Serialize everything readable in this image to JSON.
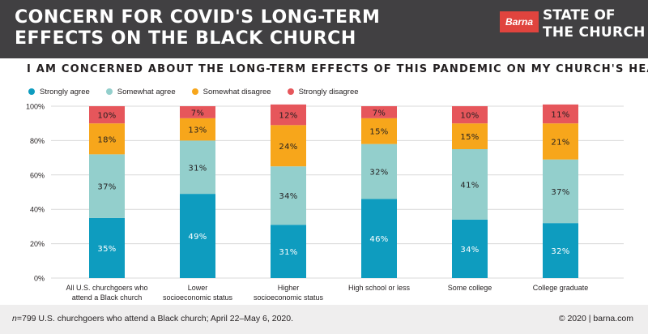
{
  "header": {
    "title_line1": "CONCERN FOR COVID'S LONG-TERM",
    "title_line2": "EFFECTS ON THE BLACK CHURCH",
    "logo_text": "Barna",
    "brand_line1": "STATE OF",
    "brand_line2": "THE CHURCH"
  },
  "footer": {
    "note_n": "n",
    "note_rest": "=799 U.S. churchgoers who attend a Black church; April 22–May 6, 2020.",
    "copyright": "© 2020 | barna.com"
  },
  "colors": {
    "strongly_agree": "#0e9cbf",
    "somewhat_agree": "#93cfcc",
    "somewhat_disagree": "#f7a61b",
    "strongly_disagree": "#e6565b"
  },
  "chart_data": {
    "type": "bar",
    "stacked": true,
    "title": "I AM CONCERNED ABOUT THE LONG-TERM EFFECTS OF THIS PANDEMIC ON MY CHURCH'S HEALTH",
    "categories": [
      [
        "All U.S. churchgoers who",
        "attend a Black church"
      ],
      [
        "Lower",
        "socioeconomic status"
      ],
      [
        "Higher",
        "socioeconomic status"
      ],
      [
        "High school or less"
      ],
      [
        "Some college"
      ],
      [
        "College graduate"
      ]
    ],
    "series": [
      {
        "name": "Strongly agree",
        "values": [
          35,
          49,
          31,
          46,
          34,
          32
        ]
      },
      {
        "name": "Somewhat agree",
        "values": [
          37,
          31,
          34,
          32,
          41,
          37
        ]
      },
      {
        "name": "Somewhat disagree",
        "values": [
          18,
          13,
          24,
          15,
          15,
          21
        ]
      },
      {
        "name": "Strongly disagree",
        "values": [
          10,
          7,
          12,
          7,
          10,
          11
        ]
      }
    ],
    "ylim": [
      0,
      100
    ],
    "yticks": [
      "0%",
      "20%",
      "40%",
      "60%",
      "80%",
      "100%"
    ],
    "grid": true,
    "legend": "top-left"
  }
}
